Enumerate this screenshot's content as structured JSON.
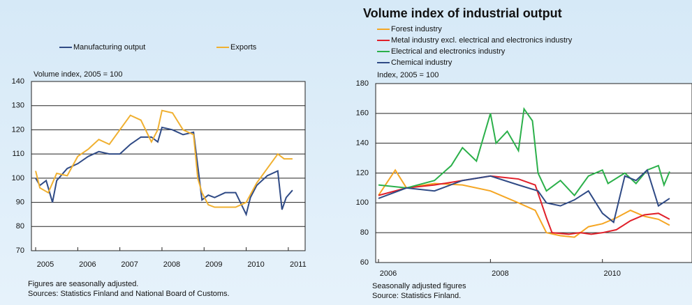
{
  "chart_data": [
    {
      "type": "line",
      "y_label": "Volume index, 2005 = 100",
      "notes": [
        "Figures are seasonally adjusted.",
        "Sources: Statistics Finland and National Board of Customs."
      ],
      "xlim": [
        2004.9,
        2011.4
      ],
      "xticks": [
        2005,
        2006,
        2007,
        2008,
        2009,
        2010,
        2011
      ],
      "ylim": [
        70,
        140
      ],
      "yticks": [
        70,
        80,
        90,
        100,
        110,
        120,
        130,
        140
      ],
      "grid": true,
      "legend": "top",
      "series": [
        {
          "name": "Manufacturing output",
          "color": "#2f4a85",
          "x": [
            2005.0,
            2005.1,
            2005.25,
            2005.4,
            2005.5,
            2005.75,
            2006.0,
            2006.25,
            2006.5,
            2006.75,
            2007.0,
            2007.25,
            2007.5,
            2007.75,
            2007.9,
            2008.0,
            2008.25,
            2008.5,
            2008.75,
            2008.85,
            2008.95,
            2009.1,
            2009.25,
            2009.5,
            2009.75,
            2010.0,
            2010.1,
            2010.25,
            2010.5,
            2010.75,
            2010.85,
            2010.95,
            2011.1
          ],
          "values": [
            100,
            97,
            99,
            90,
            99,
            104,
            106,
            109,
            111,
            110,
            110,
            114,
            117,
            117,
            115,
            121,
            120,
            118,
            119,
            105,
            91,
            93,
            92,
            94,
            94,
            85,
            92,
            97,
            101,
            103,
            87,
            92,
            95
          ]
        },
        {
          "name": "Exports",
          "color": "#f0b030",
          "x": [
            2005.0,
            2005.1,
            2005.3,
            2005.5,
            2005.75,
            2006.0,
            2006.25,
            2006.5,
            2006.75,
            2007.0,
            2007.25,
            2007.5,
            2007.75,
            2007.9,
            2008.0,
            2008.25,
            2008.5,
            2008.75,
            2008.85,
            2008.95,
            2009.1,
            2009.25,
            2009.5,
            2009.75,
            2010.0,
            2010.25,
            2010.5,
            2010.75,
            2010.9,
            2011.1
          ],
          "values": [
            103,
            96,
            94,
            102,
            101,
            109,
            112,
            116,
            114,
            120,
            126,
            124,
            115,
            120,
            128,
            127,
            120,
            118,
            100,
            94,
            89,
            88,
            88,
            88,
            90,
            98,
            104,
            110,
            108,
            108
          ]
        }
      ]
    },
    {
      "type": "line",
      "title": "Volume index of industrial output",
      "y_label": "Index, 2005 = 100",
      "notes": [
        "Seasonally adjusted figures",
        "Source: Statistics Finland."
      ],
      "xlim": [
        2005.95,
        2011.6
      ],
      "xticks": [
        2006,
        2008,
        2010
      ],
      "ylim": [
        60,
        180
      ],
      "yticks": [
        60,
        80,
        100,
        120,
        140,
        160,
        180
      ],
      "grid": true,
      "legend": "top-left",
      "series": [
        {
          "name": "Forest industry",
          "color": "#f5a623",
          "x": [
            2006.0,
            2006.3,
            2006.5,
            2007.0,
            2007.5,
            2008.0,
            2008.5,
            2008.8,
            2009.0,
            2009.25,
            2009.5,
            2009.75,
            2010.0,
            2010.25,
            2010.5,
            2010.75,
            2011.0,
            2011.2
          ],
          "values": [
            105,
            122,
            110,
            113,
            112,
            108,
            100,
            95,
            80,
            78,
            77,
            84,
            86,
            90,
            95,
            91,
            89,
            85
          ]
        },
        {
          "name": "Metal industry excl. electrical and electronics industry",
          "color": "#e0202a",
          "x": [
            2006.0,
            2006.5,
            2007.0,
            2007.5,
            2008.0,
            2008.5,
            2008.8,
            2009.0,
            2009.1,
            2009.4,
            2009.6,
            2009.8,
            2010.0,
            2010.25,
            2010.5,
            2010.75,
            2011.0,
            2011.2
          ],
          "values": [
            105,
            110,
            112,
            115,
            118,
            116,
            112,
            90,
            80,
            79,
            80,
            79,
            80,
            82,
            88,
            92,
            93,
            89
          ]
        },
        {
          "name": "Electrical and electronics industry",
          "color": "#2bb04a",
          "x": [
            2006.0,
            2006.5,
            2007.0,
            2007.3,
            2007.5,
            2007.75,
            2008.0,
            2008.1,
            2008.3,
            2008.5,
            2008.6,
            2008.75,
            2008.85,
            2009.0,
            2009.25,
            2009.5,
            2009.75,
            2010.0,
            2010.1,
            2010.4,
            2010.6,
            2010.8,
            2011.0,
            2011.1,
            2011.2
          ],
          "values": [
            112,
            110,
            115,
            125,
            137,
            128,
            160,
            140,
            148,
            135,
            163,
            155,
            120,
            108,
            115,
            105,
            118,
            122,
            113,
            120,
            113,
            122,
            125,
            112,
            121
          ]
        },
        {
          "name": "Chemical industry",
          "color": "#2f4a85",
          "x": [
            2006.0,
            2006.5,
            2007.0,
            2007.5,
            2008.0,
            2008.5,
            2008.85,
            2009.0,
            2009.25,
            2009.5,
            2009.75,
            2010.0,
            2010.2,
            2010.4,
            2010.6,
            2010.8,
            2011.0,
            2011.2
          ],
          "values": [
            103,
            110,
            108,
            115,
            118,
            112,
            108,
            100,
            98,
            102,
            108,
            93,
            87,
            118,
            115,
            122,
            98,
            103
          ]
        }
      ]
    }
  ]
}
